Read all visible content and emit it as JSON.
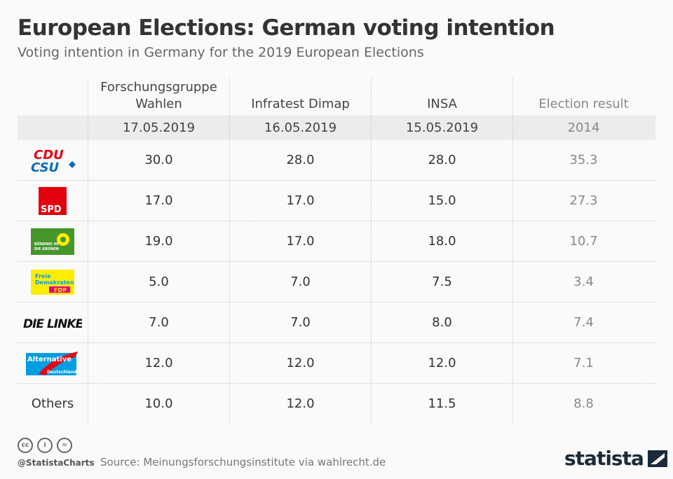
{
  "header": {
    "title": "European Elections: German voting intention",
    "subtitle": "Voting intention in Germany for the 2019 European Elections"
  },
  "chart_data": {
    "type": "table",
    "columns": [
      {
        "label": "Forschungsgruppe Wahlen",
        "date": "17.05.2019"
      },
      {
        "label": "Infratest Dimap",
        "date": "16.05.2019"
      },
      {
        "label": "INSA",
        "date": "15.05.2019"
      },
      {
        "label": "Election result",
        "date": "2014"
      }
    ],
    "rows": [
      {
        "party": "CDU/CSU",
        "logo": "cdu-csu-logo",
        "values": [
          "30.0",
          "28.0",
          "28.0",
          "35.3"
        ]
      },
      {
        "party": "SPD",
        "logo": "spd-logo",
        "values": [
          "17.0",
          "17.0",
          "15.0",
          "27.3"
        ]
      },
      {
        "party": "Bündnis 90 Die Grünen",
        "logo": "gruene-logo",
        "values": [
          "19.0",
          "17.0",
          "18.0",
          "10.7"
        ]
      },
      {
        "party": "Freie Demokraten FDP",
        "logo": "fdp-logo",
        "values": [
          "5.0",
          "7.0",
          "7.5",
          "3.4"
        ]
      },
      {
        "party": "DIE LINKE.",
        "logo": "linke-logo",
        "values": [
          "7.0",
          "7.0",
          "8.0",
          "7.4"
        ]
      },
      {
        "party": "Alternative für Deutschland",
        "logo": "afd-logo",
        "values": [
          "12.0",
          "12.0",
          "12.0",
          "7.1"
        ]
      },
      {
        "party": "Others",
        "logo": "",
        "values": [
          "10.0",
          "12.0",
          "11.5",
          "8.8"
        ]
      }
    ]
  },
  "footer": {
    "handle": "@StatistaCharts",
    "source": "Source: Meinungsforschungsinstitute via wahlrecht.de",
    "brand": "statista"
  },
  "colors": {
    "header_row_bg": "#ececec",
    "title": "#333333",
    "brand": "#1a2a3a"
  }
}
